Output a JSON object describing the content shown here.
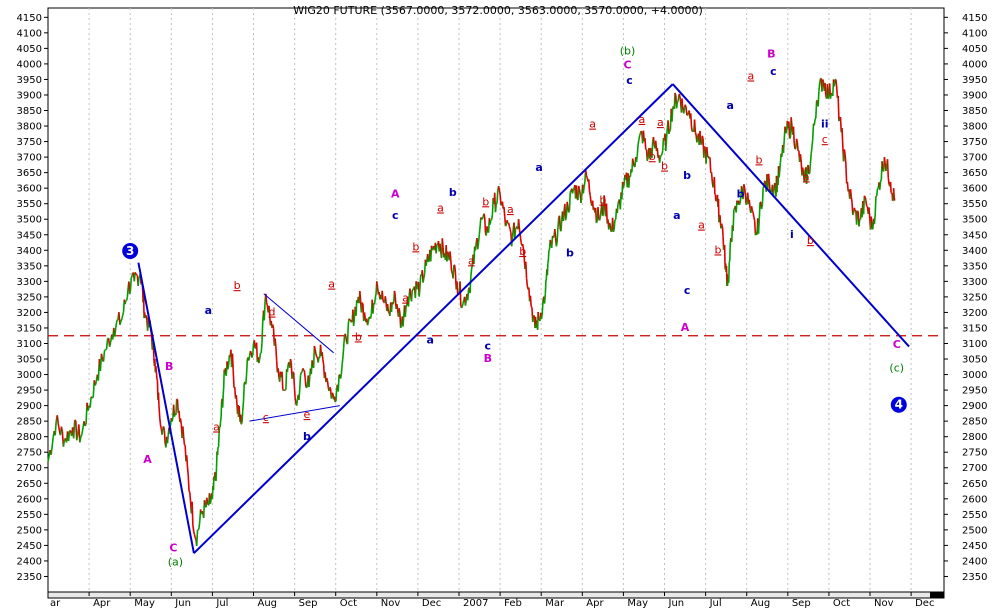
{
  "chart_data": {
    "type": "line",
    "title": "WIG20 FUTURE (3567.0000, 3572.0000, 3563.0000, 3570.0000, +4.0000)",
    "ylim": [
      2300,
      4180
    ],
    "yticks": [
      2350,
      2400,
      2450,
      2500,
      2550,
      2600,
      2650,
      2700,
      2750,
      2800,
      2850,
      2900,
      2950,
      3000,
      3050,
      3100,
      3150,
      3200,
      3250,
      3300,
      3350,
      3400,
      3450,
      3500,
      3550,
      3600,
      3650,
      3700,
      3750,
      3800,
      3850,
      3900,
      3950,
      4000,
      4050,
      4100,
      4150
    ],
    "months": [
      "ar",
      "Apr",
      "May",
      "Jun",
      "Jul",
      "Aug",
      "Sep",
      "Oct",
      "Nov",
      "Dec",
      "2007",
      "Feb",
      "Mar",
      "Apr",
      "May",
      "Jun",
      "Jul",
      "Aug",
      "Sep",
      "Oct",
      "Nov",
      "Dec"
    ],
    "xlim": [
      0,
      21.8
    ],
    "grid": true,
    "colors": {
      "up": "#00a000",
      "down": "#e00000",
      "trend": "#0000cc",
      "wave_blue": "#0000aa",
      "wave_magenta": "#cc00cc",
      "wave_red": "#cc0000",
      "wave_green": "#008000",
      "reference": "#cc0000"
    },
    "reference_level": 3125,
    "price_path": [
      [
        0.0,
        2720
      ],
      [
        0.2,
        2850
      ],
      [
        0.4,
        2790
      ],
      [
        0.6,
        2830
      ],
      [
        0.8,
        2800
      ],
      [
        1.0,
        2900
      ],
      [
        1.2,
        3000
      ],
      [
        1.4,
        3080
      ],
      [
        1.6,
        3150
      ],
      [
        1.8,
        3180
      ],
      [
        1.95,
        3280
      ],
      [
        2.1,
        3300
      ],
      [
        2.25,
        3330
      ],
      [
        2.35,
        3200
      ],
      [
        2.5,
        3140
      ],
      [
        2.6,
        3050
      ],
      [
        2.7,
        2900
      ],
      [
        2.85,
        2780
      ],
      [
        3.0,
        2860
      ],
      [
        3.15,
        2920
      ],
      [
        3.3,
        2800
      ],
      [
        3.45,
        2620
      ],
      [
        3.6,
        2470
      ],
      [
        3.75,
        2560
      ],
      [
        3.9,
        2580
      ],
      [
        4.0,
        2600
      ],
      [
        4.1,
        2700
      ],
      [
        4.2,
        2850
      ],
      [
        4.3,
        3000
      ],
      [
        4.45,
        3080
      ],
      [
        4.6,
        2900
      ],
      [
        4.7,
        2840
      ],
      [
        4.85,
        3050
      ],
      [
        5.0,
        3100
      ],
      [
        5.15,
        3050
      ],
      [
        5.3,
        3260
      ],
      [
        5.45,
        3150
      ],
      [
        5.6,
        3020
      ],
      [
        5.75,
        2950
      ],
      [
        5.9,
        3050
      ],
      [
        6.05,
        2900
      ],
      [
        6.2,
        3020
      ],
      [
        6.35,
        2960
      ],
      [
        6.5,
        3080
      ],
      [
        6.65,
        3060
      ],
      [
        6.8,
        2980
      ],
      [
        6.95,
        2920
      ],
      [
        7.1,
        3000
      ],
      [
        7.25,
        3120
      ],
      [
        7.4,
        3170
      ],
      [
        7.55,
        3250
      ],
      [
        7.7,
        3200
      ],
      [
        7.85,
        3180
      ],
      [
        8.0,
        3300
      ],
      [
        8.15,
        3240
      ],
      [
        8.3,
        3200
      ],
      [
        8.45,
        3250
      ],
      [
        8.6,
        3160
      ],
      [
        8.75,
        3250
      ],
      [
        8.9,
        3280
      ],
      [
        9.05,
        3280
      ],
      [
        9.2,
        3350
      ],
      [
        9.35,
        3400
      ],
      [
        9.5,
        3430
      ],
      [
        9.65,
        3390
      ],
      [
        9.8,
        3370
      ],
      [
        9.95,
        3300
      ],
      [
        10.1,
        3230
      ],
      [
        10.25,
        3280
      ],
      [
        10.4,
        3400
      ],
      [
        10.55,
        3500
      ],
      [
        10.7,
        3460
      ],
      [
        10.85,
        3550
      ],
      [
        11.0,
        3580
      ],
      [
        11.15,
        3480
      ],
      [
        11.3,
        3440
      ],
      [
        11.45,
        3500
      ],
      [
        11.55,
        3420
      ],
      [
        11.7,
        3280
      ],
      [
        11.85,
        3150
      ],
      [
        11.95,
        3180
      ],
      [
        12.1,
        3260
      ],
      [
        12.2,
        3400
      ],
      [
        12.35,
        3440
      ],
      [
        12.5,
        3500
      ],
      [
        12.65,
        3540
      ],
      [
        12.8,
        3600
      ],
      [
        12.95,
        3580
      ],
      [
        13.1,
        3640
      ],
      [
        13.25,
        3560
      ],
      [
        13.4,
        3500
      ],
      [
        13.55,
        3550
      ],
      [
        13.7,
        3460
      ],
      [
        13.85,
        3520
      ],
      [
        14.0,
        3600
      ],
      [
        14.15,
        3640
      ],
      [
        14.3,
        3700
      ],
      [
        14.45,
        3780
      ],
      [
        14.6,
        3700
      ],
      [
        14.75,
        3740
      ],
      [
        14.9,
        3700
      ],
      [
        15.05,
        3760
      ],
      [
        15.2,
        3860
      ],
      [
        15.35,
        3900
      ],
      [
        15.45,
        3860
      ],
      [
        15.6,
        3850
      ],
      [
        15.75,
        3780
      ],
      [
        15.9,
        3740
      ],
      [
        16.05,
        3700
      ],
      [
        16.2,
        3620
      ],
      [
        16.3,
        3540
      ],
      [
        16.4,
        3480
      ],
      [
        16.5,
        3330
      ],
      [
        16.55,
        3300
      ],
      [
        16.65,
        3480
      ],
      [
        16.8,
        3560
      ],
      [
        16.95,
        3600
      ],
      [
        17.1,
        3520
      ],
      [
        17.25,
        3450
      ],
      [
        17.4,
        3600
      ],
      [
        17.55,
        3620
      ],
      [
        17.7,
        3600
      ],
      [
        17.8,
        3650
      ],
      [
        17.95,
        3780
      ],
      [
        18.1,
        3800
      ],
      [
        18.25,
        3720
      ],
      [
        18.4,
        3620
      ],
      [
        18.55,
        3680
      ],
      [
        18.7,
        3880
      ],
      [
        18.85,
        3950
      ],
      [
        19.0,
        3900
      ],
      [
        19.15,
        3950
      ],
      [
        19.3,
        3780
      ],
      [
        19.45,
        3620
      ],
      [
        19.6,
        3520
      ],
      [
        19.75,
        3500
      ],
      [
        19.9,
        3560
      ],
      [
        20.05,
        3470
      ],
      [
        20.2,
        3600
      ],
      [
        20.35,
        3700
      ],
      [
        20.5,
        3620
      ],
      [
        20.6,
        3560
      ]
    ],
    "trend_lines": [
      {
        "points": [
          [
            2.2,
            3360
          ],
          [
            3.55,
            2425
          ]
        ],
        "width": 2
      },
      {
        "points": [
          [
            3.55,
            2425
          ],
          [
            15.2,
            3935
          ]
        ],
        "width": 2
      },
      {
        "points": [
          [
            15.2,
            3935
          ],
          [
            20.95,
            3090
          ]
        ],
        "width": 2
      },
      {
        "points": [
          [
            4.9,
            2850
          ],
          [
            7.1,
            2900
          ]
        ],
        "width": 1
      },
      {
        "points": [
          [
            5.25,
            3260
          ],
          [
            6.95,
            3070
          ]
        ],
        "width": 1
      }
    ],
    "annotations": [
      {
        "text": "3",
        "x": 2.0,
        "y": 3385,
        "style": "circle"
      },
      {
        "text": "4",
        "x": 20.7,
        "y": 2890,
        "style": "circle"
      },
      {
        "text": "A",
        "x": 2.42,
        "y": 2715,
        "color": "magenta"
      },
      {
        "text": "B",
        "x": 2.95,
        "y": 3015,
        "color": "magenta"
      },
      {
        "text": "C",
        "x": 3.05,
        "y": 2430,
        "color": "magenta"
      },
      {
        "text": "(a)",
        "x": 3.1,
        "y": 2385,
        "color": "green"
      },
      {
        "text": "a",
        "x": 3.9,
        "y": 3195,
        "color": "blue"
      },
      {
        "text": "a",
        "x": 4.1,
        "y": 2820,
        "color": "red",
        "underline": true
      },
      {
        "text": "b",
        "x": 4.6,
        "y": 3275,
        "color": "red",
        "underline": true
      },
      {
        "text": "c",
        "x": 5.3,
        "y": 2850,
        "color": "red",
        "underline": true
      },
      {
        "text": "d",
        "x": 5.45,
        "y": 3190,
        "color": "red",
        "underline": true
      },
      {
        "text": "e",
        "x": 6.3,
        "y": 2860,
        "color": "red",
        "underline": true
      },
      {
        "text": "b",
        "x": 6.3,
        "y": 2790,
        "color": "blue"
      },
      {
        "text": "a",
        "x": 6.9,
        "y": 3280,
        "color": "red",
        "underline": true
      },
      {
        "text": "b",
        "x": 7.55,
        "y": 3110,
        "color": "red",
        "underline": true
      },
      {
        "text": "A",
        "x": 8.45,
        "y": 3570,
        "color": "magenta"
      },
      {
        "text": "c",
        "x": 8.45,
        "y": 3500,
        "color": "blue"
      },
      {
        "text": "a",
        "x": 8.7,
        "y": 3235,
        "color": "red",
        "underline": true
      },
      {
        "text": "b",
        "x": 8.95,
        "y": 3400,
        "color": "red",
        "underline": true
      },
      {
        "text": "a",
        "x": 9.55,
        "y": 3525,
        "color": "red",
        "underline": true
      },
      {
        "text": "b",
        "x": 9.85,
        "y": 3575,
        "color": "blue"
      },
      {
        "text": "b",
        "x": 10.65,
        "y": 3545,
        "color": "red",
        "underline": true
      },
      {
        "text": "a",
        "x": 10.3,
        "y": 3355,
        "color": "red",
        "underline": true
      },
      {
        "text": "a",
        "x": 9.3,
        "y": 3100,
        "color": "blue"
      },
      {
        "text": "c",
        "x": 10.7,
        "y": 3080,
        "color": "blue"
      },
      {
        "text": "B",
        "x": 10.7,
        "y": 3040,
        "color": "magenta"
      },
      {
        "text": "a",
        "x": 11.25,
        "y": 3520,
        "color": "red",
        "underline": true
      },
      {
        "text": "b",
        "x": 11.55,
        "y": 3385,
        "color": "red",
        "underline": true
      },
      {
        "text": "a",
        "x": 11.95,
        "y": 3655,
        "color": "blue"
      },
      {
        "text": "b",
        "x": 12.7,
        "y": 3380,
        "color": "blue"
      },
      {
        "text": "a",
        "x": 13.25,
        "y": 3795,
        "color": "red",
        "underline": true
      },
      {
        "text": "b",
        "x": 13.5,
        "y": 3550,
        "color": "red",
        "underline": true
      },
      {
        "text": "(b)",
        "x": 14.1,
        "y": 4030,
        "color": "green"
      },
      {
        "text": "C",
        "x": 14.1,
        "y": 3985,
        "color": "magenta"
      },
      {
        "text": "c",
        "x": 14.15,
        "y": 3935,
        "color": "blue"
      },
      {
        "text": "a",
        "x": 14.45,
        "y": 3810,
        "color": "red",
        "underline": true
      },
      {
        "text": "b",
        "x": 14.7,
        "y": 3690,
        "color": "red",
        "underline": true
      },
      {
        "text": "a",
        "x": 14.9,
        "y": 3800,
        "color": "red",
        "underline": true
      },
      {
        "text": "b",
        "x": 15.0,
        "y": 3660,
        "color": "red",
        "underline": true
      },
      {
        "text": "a",
        "x": 15.3,
        "y": 3500,
        "color": "blue"
      },
      {
        "text": "b",
        "x": 15.55,
        "y": 3630,
        "color": "blue"
      },
      {
        "text": "c",
        "x": 15.55,
        "y": 3260,
        "color": "blue"
      },
      {
        "text": "A",
        "x": 15.5,
        "y": 3140,
        "color": "magenta"
      },
      {
        "text": "a",
        "x": 15.9,
        "y": 3470,
        "color": "red",
        "underline": true
      },
      {
        "text": "b",
        "x": 16.3,
        "y": 3390,
        "color": "red",
        "underline": true
      },
      {
        "text": "a",
        "x": 16.6,
        "y": 3855,
        "color": "blue"
      },
      {
        "text": "b",
        "x": 16.85,
        "y": 3570,
        "color": "blue"
      },
      {
        "text": "a",
        "x": 17.1,
        "y": 3950,
        "color": "red",
        "underline": true
      },
      {
        "text": "b",
        "x": 17.3,
        "y": 3680,
        "color": "red",
        "underline": true
      },
      {
        "text": "B",
        "x": 17.6,
        "y": 4020,
        "color": "magenta"
      },
      {
        "text": "c",
        "x": 17.65,
        "y": 3965,
        "color": "blue"
      },
      {
        "text": "a",
        "x": 18.45,
        "y": 3625,
        "color": "red",
        "underline": true
      },
      {
        "text": "i",
        "x": 18.1,
        "y": 3440,
        "color": "blue"
      },
      {
        "text": "b",
        "x": 18.55,
        "y": 3420,
        "color": "red",
        "underline": true
      },
      {
        "text": "ii",
        "x": 18.9,
        "y": 3795,
        "color": "blue"
      },
      {
        "text": "c",
        "x": 18.9,
        "y": 3745,
        "color": "red",
        "underline": true
      },
      {
        "text": "C",
        "x": 20.65,
        "y": 3085,
        "color": "magenta"
      },
      {
        "text": "(c)",
        "x": 20.65,
        "y": 3010,
        "color": "green"
      }
    ]
  }
}
